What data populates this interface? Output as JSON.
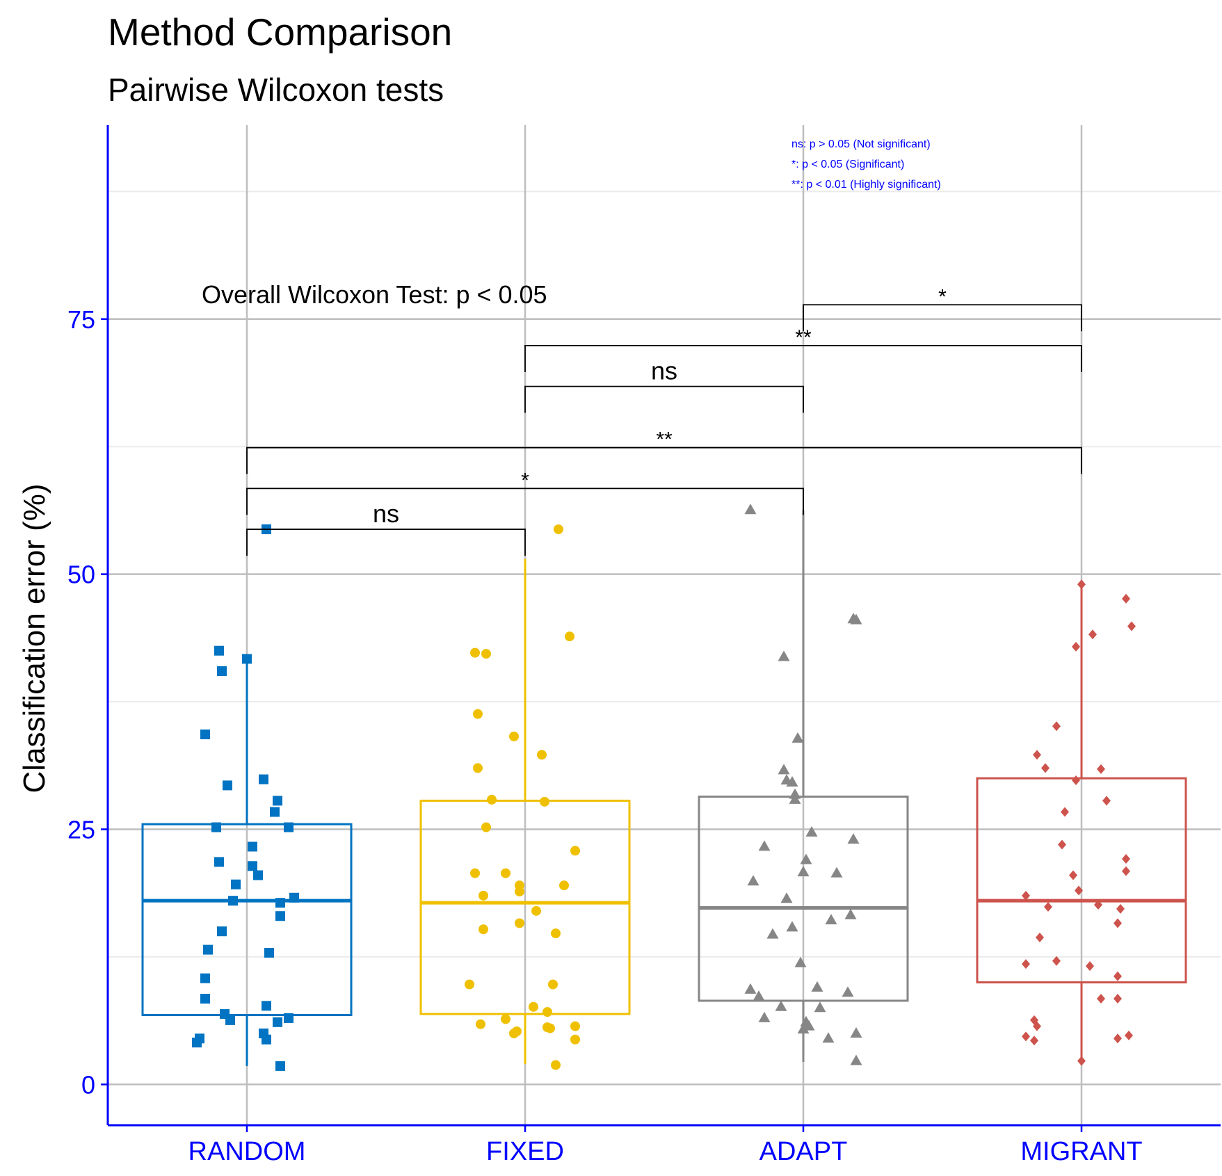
{
  "chart_data": {
    "type": "boxplot",
    "title": "Method Comparison",
    "subtitle": "Pairwise Wilcoxon tests",
    "xlabel": "",
    "ylabel": "Classification error (%)",
    "ylim": [
      -4,
      94
    ],
    "yticks": [
      0,
      25,
      50,
      75
    ],
    "grid": true,
    "categories": [
      "RANDOM",
      "FIXED",
      "ADAPT",
      "MIGRANT"
    ],
    "series": [
      {
        "name": "RANDOM",
        "color": "#0073C2",
        "shape": "square",
        "whisker_low": 1.8,
        "q1": 6.8,
        "median": 18.0,
        "q3": 25.5,
        "whisker_high": 41.7,
        "points": [
          [
            -0.1,
            42.5
          ],
          [
            -0.09,
            40.5
          ],
          [
            0.0,
            41.7
          ],
          [
            -0.15,
            34.3
          ],
          [
            -0.07,
            29.3
          ],
          [
            0.06,
            29.9
          ],
          [
            0.11,
            27.8
          ],
          [
            0.1,
            26.7
          ],
          [
            -0.11,
            25.2
          ],
          [
            0.15,
            25.2
          ],
          [
            0.02,
            23.3
          ],
          [
            -0.1,
            21.8
          ],
          [
            0.02,
            21.4
          ],
          [
            0.04,
            20.5
          ],
          [
            -0.04,
            19.6
          ],
          [
            0.17,
            18.3
          ],
          [
            0.12,
            17.8
          ],
          [
            -0.05,
            18.0
          ],
          [
            0.12,
            16.5
          ],
          [
            -0.09,
            15.0
          ],
          [
            0.08,
            12.9
          ],
          [
            -0.14,
            13.2
          ],
          [
            -0.15,
            10.4
          ],
          [
            -0.15,
            8.4
          ],
          [
            -0.08,
            6.9
          ],
          [
            0.07,
            7.7
          ],
          [
            -0.06,
            6.3
          ],
          [
            0.15,
            6.5
          ],
          [
            0.11,
            6.1
          ],
          [
            0.06,
            5.0
          ],
          [
            -0.17,
            4.5
          ],
          [
            -0.18,
            4.1
          ],
          [
            0.07,
            4.4
          ],
          [
            0.12,
            1.8
          ],
          [
            0.07,
            54.4
          ]
        ]
      },
      {
        "name": "FIXED",
        "color": "#EFC000",
        "shape": "circle",
        "whisker_low": 2.0,
        "q1": 6.9,
        "median": 17.8,
        "q3": 27.8,
        "whisker_high": 51.5,
        "points": [
          [
            0.12,
            54.4
          ],
          [
            0.16,
            43.9
          ],
          [
            -0.18,
            42.3
          ],
          [
            -0.14,
            42.2
          ],
          [
            -0.17,
            36.3
          ],
          [
            -0.04,
            34.1
          ],
          [
            -0.17,
            31.0
          ],
          [
            0.06,
            32.3
          ],
          [
            -0.12,
            27.9
          ],
          [
            0.07,
            27.7
          ],
          [
            -0.14,
            25.2
          ],
          [
            0.18,
            22.9
          ],
          [
            -0.18,
            20.7
          ],
          [
            -0.07,
            20.7
          ],
          [
            -0.02,
            19.5
          ],
          [
            0.14,
            19.5
          ],
          [
            -0.15,
            18.5
          ],
          [
            -0.02,
            18.9
          ],
          [
            0.04,
            17.0
          ],
          [
            -0.02,
            15.8
          ],
          [
            -0.15,
            15.2
          ],
          [
            0.11,
            14.8
          ],
          [
            -0.2,
            9.8
          ],
          [
            0.1,
            9.8
          ],
          [
            0.03,
            7.6
          ],
          [
            0.08,
            7.1
          ],
          [
            -0.07,
            6.4
          ],
          [
            -0.16,
            5.9
          ],
          [
            0.08,
            5.6
          ],
          [
            0.09,
            5.5
          ],
          [
            -0.03,
            5.2
          ],
          [
            -0.04,
            5.0
          ],
          [
            0.18,
            5.7
          ],
          [
            0.18,
            4.4
          ],
          [
            0.11,
            1.9
          ]
        ]
      },
      {
        "name": "ADAPT",
        "color": "#868686",
        "shape": "triangle",
        "whisker_low": 2.2,
        "q1": 8.2,
        "median": 17.3,
        "q3": 28.2,
        "whisker_high": 56.3,
        "points": [
          [
            -0.19,
            56.3
          ],
          [
            0.18,
            45.6
          ],
          [
            0.19,
            45.5
          ],
          [
            -0.07,
            41.9
          ],
          [
            -0.02,
            33.9
          ],
          [
            -0.07,
            30.8
          ],
          [
            -0.06,
            29.8
          ],
          [
            -0.04,
            29.6
          ],
          [
            -0.03,
            28.4
          ],
          [
            -0.03,
            27.9
          ],
          [
            0.18,
            24.0
          ],
          [
            0.03,
            24.7
          ],
          [
            -0.14,
            23.3
          ],
          [
            0.01,
            22.0
          ],
          [
            0.0,
            20.8
          ],
          [
            0.12,
            20.7
          ],
          [
            -0.18,
            19.9
          ],
          [
            -0.06,
            18.2
          ],
          [
            0.17,
            16.6
          ],
          [
            0.1,
            16.1
          ],
          [
            -0.04,
            15.4
          ],
          [
            -0.11,
            14.7
          ],
          [
            -0.01,
            11.9
          ],
          [
            0.05,
            9.5
          ],
          [
            -0.19,
            9.3
          ],
          [
            0.16,
            9.0
          ],
          [
            -0.16,
            8.6
          ],
          [
            -0.08,
            7.6
          ],
          [
            0.06,
            7.5
          ],
          [
            -0.14,
            6.5
          ],
          [
            0.01,
            6.1
          ],
          [
            0.02,
            5.7
          ],
          [
            0.0,
            5.4
          ],
          [
            0.09,
            4.5
          ],
          [
            0.19,
            5.0
          ],
          [
            0.19,
            2.3
          ]
        ]
      },
      {
        "name": "MIGRANT",
        "color": "#CD534C",
        "shape": "diamond",
        "whisker_low": 2.3,
        "q1": 10.0,
        "median": 18.0,
        "q3": 30.0,
        "whisker_high": 49.0,
        "points": [
          [
            0.0,
            49.0
          ],
          [
            0.16,
            47.6
          ],
          [
            0.18,
            44.9
          ],
          [
            0.04,
            44.1
          ],
          [
            -0.02,
            42.9
          ],
          [
            -0.09,
            35.1
          ],
          [
            -0.16,
            32.3
          ],
          [
            -0.13,
            31.0
          ],
          [
            0.07,
            30.9
          ],
          [
            -0.02,
            29.8
          ],
          [
            0.09,
            27.8
          ],
          [
            -0.06,
            26.7
          ],
          [
            -0.07,
            23.5
          ],
          [
            -0.03,
            20.5
          ],
          [
            0.16,
            20.9
          ],
          [
            0.16,
            22.1
          ],
          [
            -0.01,
            19.0
          ],
          [
            -0.2,
            18.5
          ],
          [
            -0.12,
            17.4
          ],
          [
            0.06,
            17.6
          ],
          [
            0.14,
            17.2
          ],
          [
            0.13,
            15.8
          ],
          [
            -0.15,
            14.4
          ],
          [
            -0.2,
            11.8
          ],
          [
            -0.09,
            12.1
          ],
          [
            0.03,
            11.6
          ],
          [
            0.13,
            10.6
          ],
          [
            0.07,
            8.4
          ],
          [
            0.13,
            8.4
          ],
          [
            -0.17,
            6.3
          ],
          [
            -0.16,
            5.7
          ],
          [
            -0.2,
            4.7
          ],
          [
            -0.17,
            4.3
          ],
          [
            0.13,
            4.5
          ],
          [
            0.17,
            4.8
          ],
          [
            0.0,
            2.3
          ]
        ]
      }
    ],
    "comparisons": [
      {
        "from": 0,
        "to": 1,
        "y": 54.4,
        "label": "ns"
      },
      {
        "from": 0,
        "to": 2,
        "y": 58.4,
        "label": "*"
      },
      {
        "from": 0,
        "to": 3,
        "y": 62.4,
        "label": "**"
      },
      {
        "from": 1,
        "to": 2,
        "y": 68.4,
        "label": "ns"
      },
      {
        "from": 1,
        "to": 3,
        "y": 72.4,
        "label": "**"
      },
      {
        "from": 2,
        "to": 3,
        "y": 76.4,
        "label": "*"
      }
    ],
    "annotations": {
      "overall_test": "Overall Wilcoxon Test: p < 0.05",
      "legend_notes": [
        "ns: p > 0.05 (Not significant)",
        "*: p < 0.05 (Significant)",
        "**: p < 0.01 (Highly significant)"
      ]
    },
    "colors": {
      "axis": "#0000FF",
      "major_grid": "#BEBEBE",
      "minor_grid": "#EBEBEB",
      "bracket": "#000000"
    }
  }
}
